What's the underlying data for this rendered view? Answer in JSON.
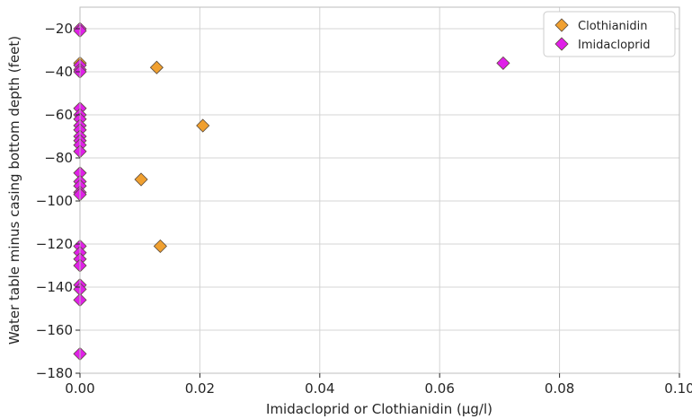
{
  "chart_data": {
    "type": "scatter",
    "xlabel": "Imidacloprid or Clothianidin (µg/l)",
    "ylabel": "Water table minus casing bottom depth (feet)",
    "xlim": [
      0.0,
      0.1
    ],
    "ylim": [
      -180,
      -10
    ],
    "xticks": [
      "0.00",
      "0.02",
      "0.04",
      "0.06",
      "0.08",
      "0.10"
    ],
    "yticks": [
      "−20",
      "−40",
      "−60",
      "−80",
      "−100",
      "−120",
      "−140",
      "−160",
      "−180"
    ],
    "grid": true,
    "legend_position": "top-right",
    "series": [
      {
        "name": "Clothianidin",
        "marker": "diamond",
        "color": "#f0a030",
        "points": [
          [
            0.0,
            -36
          ],
          [
            0.0128,
            -38
          ],
          [
            0.0205,
            -65
          ],
          [
            0.0102,
            -90
          ],
          [
            0.0134,
            -121
          ]
        ]
      },
      {
        "name": "Imidacloprid",
        "marker": "diamond",
        "color": "#e020e8",
        "points": [
          [
            0.0,
            -20
          ],
          [
            0.0,
            -21
          ],
          [
            0.0,
            -37
          ],
          [
            0.0,
            -39
          ],
          [
            0.0,
            -40
          ],
          [
            0.0,
            -57
          ],
          [
            0.0,
            -60
          ],
          [
            0.0,
            -62
          ],
          [
            0.0,
            -65
          ],
          [
            0.0,
            -67
          ],
          [
            0.0,
            -70
          ],
          [
            0.0,
            -72
          ],
          [
            0.0,
            -74
          ],
          [
            0.0,
            -77
          ],
          [
            0.0,
            -87
          ],
          [
            0.0,
            -91
          ],
          [
            0.0,
            -93
          ],
          [
            0.0,
            -96
          ],
          [
            0.0,
            -97
          ],
          [
            0.0,
            -121
          ],
          [
            0.0,
            -124
          ],
          [
            0.0,
            -127
          ],
          [
            0.0,
            -130
          ],
          [
            0.0,
            -139
          ],
          [
            0.0,
            -141
          ],
          [
            0.0,
            -146
          ],
          [
            0.0,
            -171
          ],
          [
            0.0706,
            -36
          ]
        ]
      }
    ]
  }
}
